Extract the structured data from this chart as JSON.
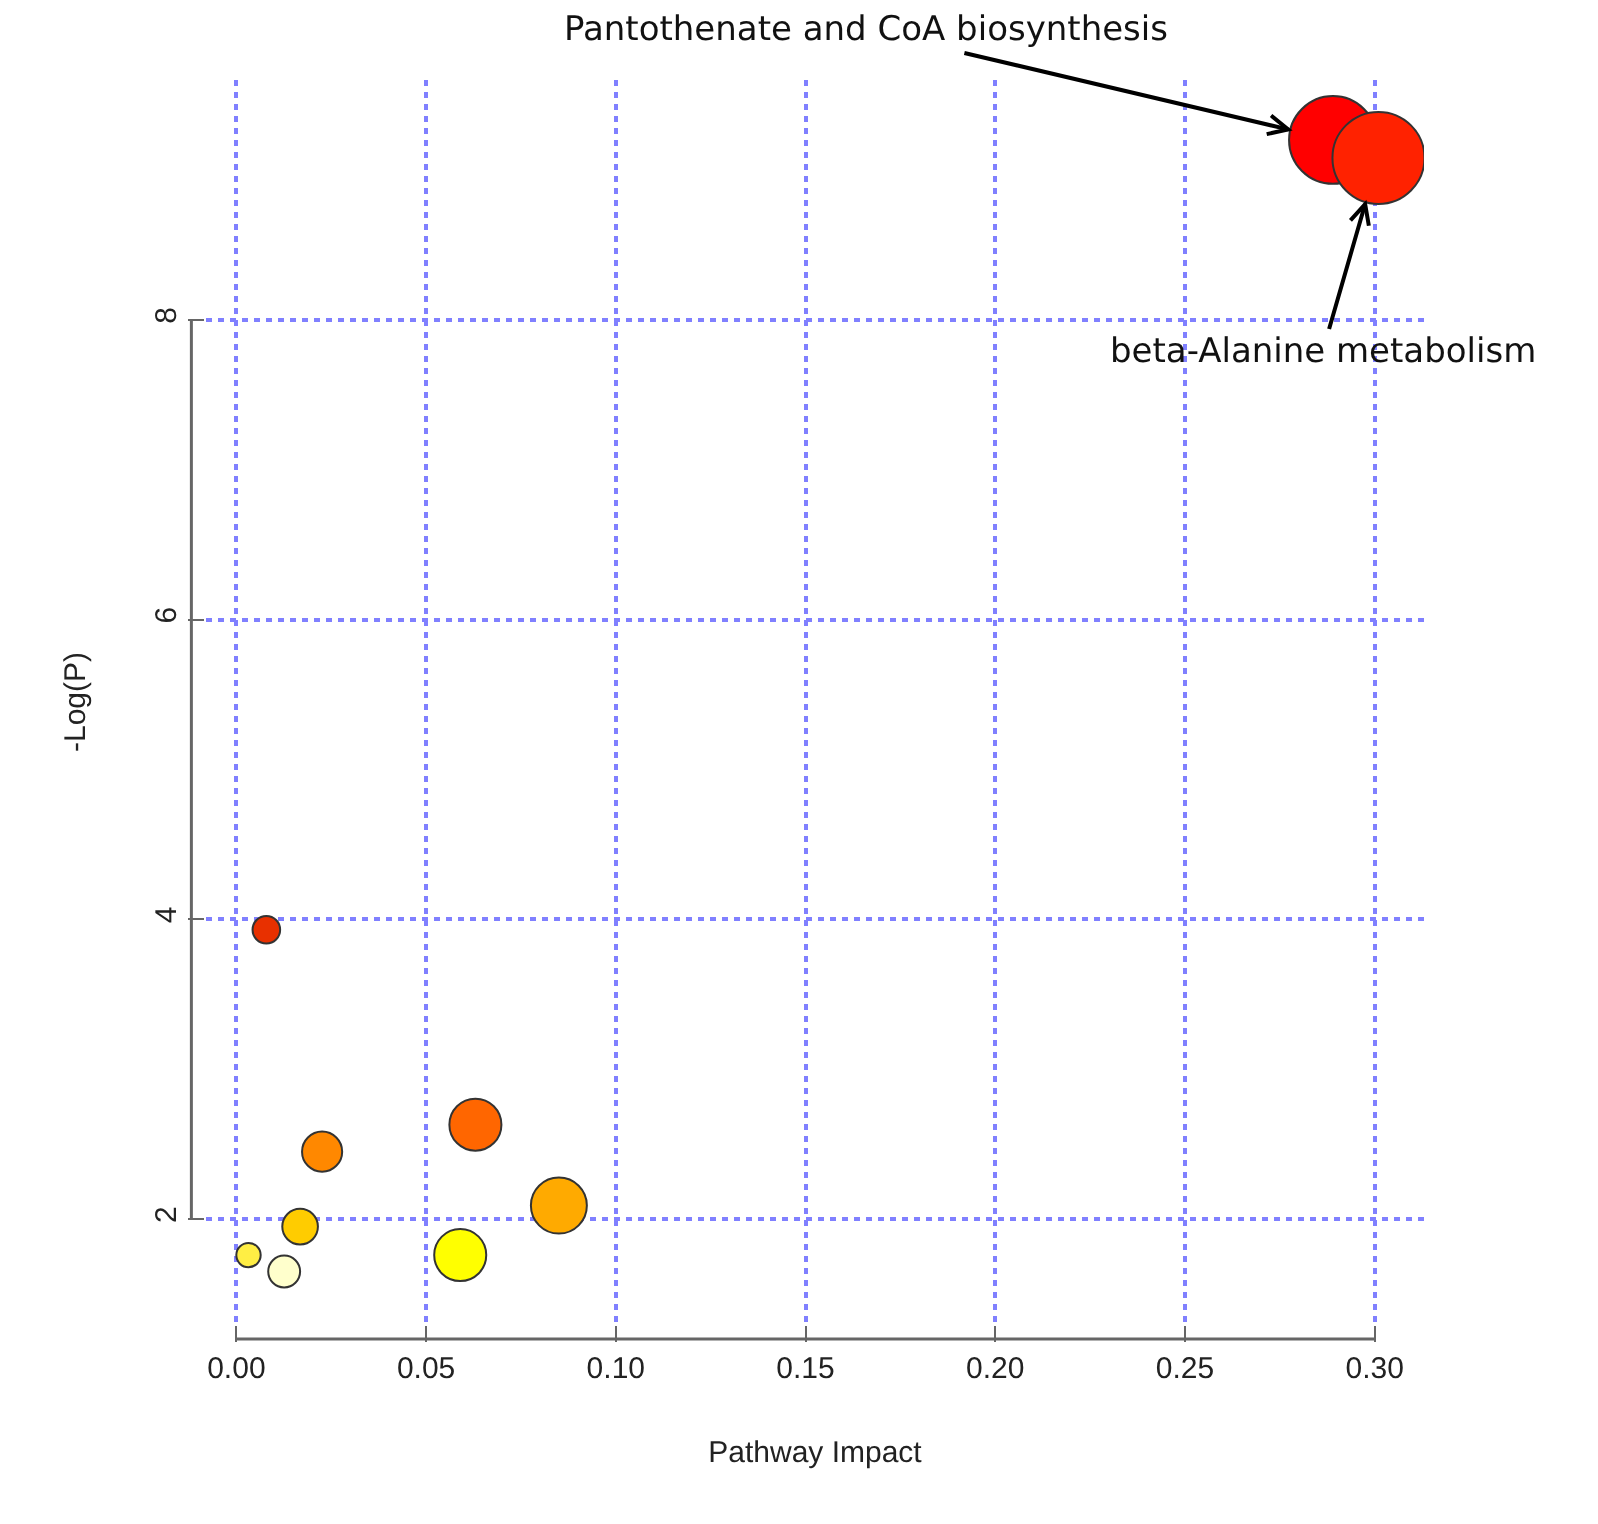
{
  "chart_data": {
    "type": "bubble",
    "xlabel": "Pathway Impact",
    "ylabel": "-Log(P)",
    "x": [
      0.0079,
      0.0226,
      0.0168,
      0.0032,
      0.0126,
      0.063,
      0.085,
      0.059,
      0.289,
      0.301
    ],
    "values": [
      3.93,
      2.45,
      1.95,
      1.76,
      1.65,
      2.63,
      2.09,
      1.76,
      9.2,
      9.08
    ],
    "sizes": [
      0.09,
      0.19,
      0.15,
      0.07,
      0.12,
      0.32,
      0.37,
      0.32,
      0.91,
      1
    ],
    "colors": [
      "#e83000",
      "#ff8800",
      "#ffcc00",
      "#ffee44",
      "#ffffcc",
      "#ff6600",
      "#ffaa00",
      "#ffff00",
      "#ff0000",
      "#ff2200"
    ],
    "xlim": [
      -0.008,
      0.313
    ],
    "ylim": [
      1.3,
      9.6
    ],
    "xticks": [
      {
        "value": 0,
        "label": "0.00"
      },
      {
        "value": 0.05,
        "label": "0.05"
      },
      {
        "value": 0.1,
        "label": "0.10"
      },
      {
        "value": 0.15,
        "label": "0.15"
      },
      {
        "value": 0.2,
        "label": "0.20"
      },
      {
        "value": 0.25,
        "label": "0.25"
      },
      {
        "value": 0.3,
        "label": "0.30"
      }
    ],
    "yticks": [
      2,
      4,
      6,
      8
    ],
    "grid": true,
    "annotations": [
      {
        "text": "Pantothenate and CoA biosynthesis",
        "x": 0.289,
        "y": 9.2
      },
      {
        "text": "beta-Alanine metabolism",
        "x": 0.301,
        "y": 9.08
      }
    ]
  }
}
